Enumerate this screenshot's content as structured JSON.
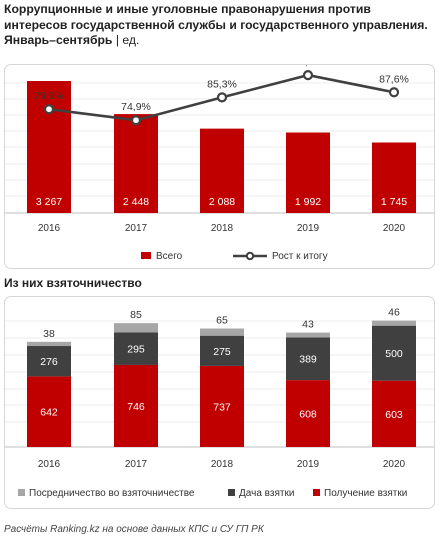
{
  "title_main": "Коррупционные и иные уголовные правонарушения против интересов государственной службы и государственного управления. Январь–сентябрь",
  "title_unit": "| ед.",
  "subtitle": "Из них взяточничество",
  "source": "Расчёты Ranking.kz на основе данных КПС и СУ ГП РК",
  "colors": {
    "red": "#c00000",
    "dark": "#404040",
    "gray": "#a6a6a6",
    "line": "#404040"
  },
  "chart_data": [
    {
      "type": "bar",
      "categories": [
        "2016",
        "2017",
        "2018",
        "2019",
        "2020"
      ],
      "series": [
        {
          "name": "Всего",
          "type": "bar",
          "values": [
            3267,
            2448,
            2088,
            1992,
            1745
          ],
          "labels": [
            "3 267",
            "2 448",
            "2 088",
            "1 992",
            "1 745"
          ]
        },
        {
          "name": "Рост к итогу",
          "type": "line",
          "values": [
            79.9,
            74.9,
            85.3,
            95.4,
            87.6
          ],
          "labels": [
            "79,9%",
            "74,9%",
            "85,3%",
            "95,4%",
            "87,6%"
          ]
        }
      ],
      "legend": [
        "Всего",
        "Рост к итогу"
      ]
    },
    {
      "type": "bar",
      "stacked": true,
      "categories": [
        "2016",
        "2017",
        "2018",
        "2019",
        "2020"
      ],
      "series": [
        {
          "name": "Получение взятки",
          "values": [
            642,
            746,
            737,
            608,
            603
          ]
        },
        {
          "name": "Дача взятки",
          "values": [
            276,
            295,
            275,
            389,
            500
          ]
        },
        {
          "name": "Посредничество во взяточничестве",
          "values": [
            38,
            85,
            65,
            43,
            46
          ]
        }
      ],
      "legend": [
        "Посредничество во взяточничестве",
        "Дача взятки",
        "Получение взятки"
      ]
    }
  ]
}
